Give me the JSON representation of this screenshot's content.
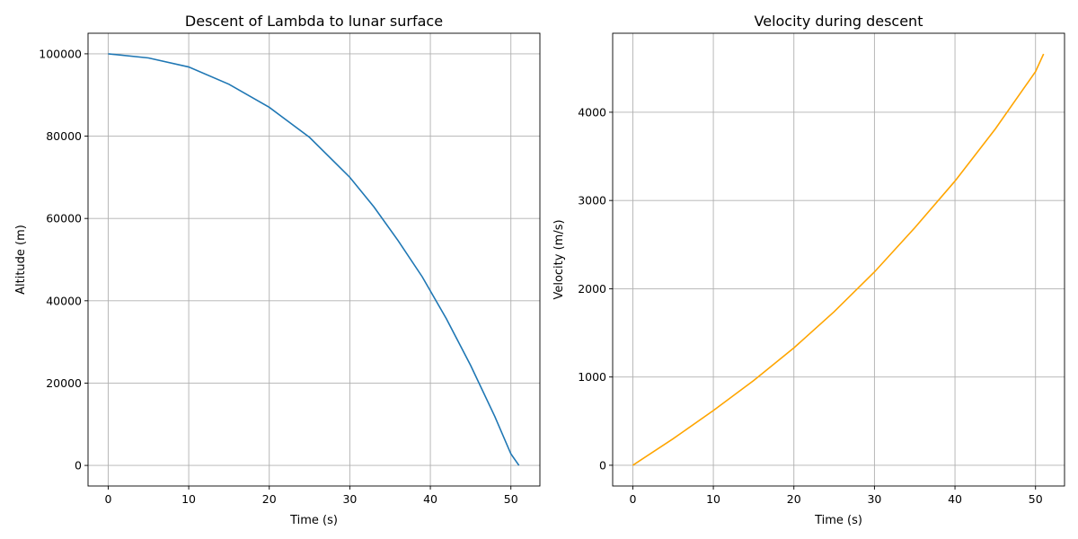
{
  "chart_data": [
    {
      "type": "line",
      "title": "Descent of Lambda to lunar surface",
      "xlabel": "Time (s)",
      "ylabel": "Altitude (m)",
      "xlim": [
        -2.5,
        53.6
      ],
      "ylim": [
        -5000,
        105000
      ],
      "xticks": [
        0,
        10,
        20,
        30,
        40,
        50
      ],
      "yticks": [
        0,
        20000,
        40000,
        60000,
        80000,
        100000
      ],
      "xtick_labels": [
        "0",
        "10",
        "20",
        "30",
        "40",
        "50"
      ],
      "ytick_labels": [
        "0",
        "20000",
        "40000",
        "60000",
        "80000",
        "100000"
      ],
      "grid": true,
      "series": [
        {
          "color": "#1f77b4",
          "x": [
            0,
            5,
            10,
            15,
            20,
            25,
            30,
            33,
            36,
            39,
            42,
            45,
            48,
            50,
            51
          ],
          "y": [
            100000,
            99000,
            96800,
            92600,
            87000,
            79700,
            70000,
            62800,
            54600,
            45800,
            35600,
            24300,
            11900,
            2800,
            0
          ]
        }
      ]
    },
    {
      "type": "line",
      "title": "Velocity during descent",
      "xlabel": "Time (s)",
      "ylabel": "Velocity (m/s)",
      "xlim": [
        -2.5,
        53.6
      ],
      "ylim": [
        -235,
        4895
      ],
      "xticks": [
        0,
        10,
        20,
        30,
        40,
        50
      ],
      "yticks": [
        0,
        1000,
        2000,
        3000,
        4000
      ],
      "xtick_labels": [
        "0",
        "10",
        "20",
        "30",
        "40",
        "50"
      ],
      "ytick_labels": [
        "0",
        "1000",
        "2000",
        "3000",
        "4000"
      ],
      "grid": true,
      "series": [
        {
          "color": "#ffa500",
          "x": [
            0,
            5,
            10,
            15,
            20,
            25,
            30,
            35,
            40,
            45,
            50,
            51
          ],
          "y": [
            0,
            300,
            620,
            960,
            1330,
            1740,
            2190,
            2690,
            3220,
            3810,
            4460,
            4660
          ]
        }
      ]
    }
  ]
}
